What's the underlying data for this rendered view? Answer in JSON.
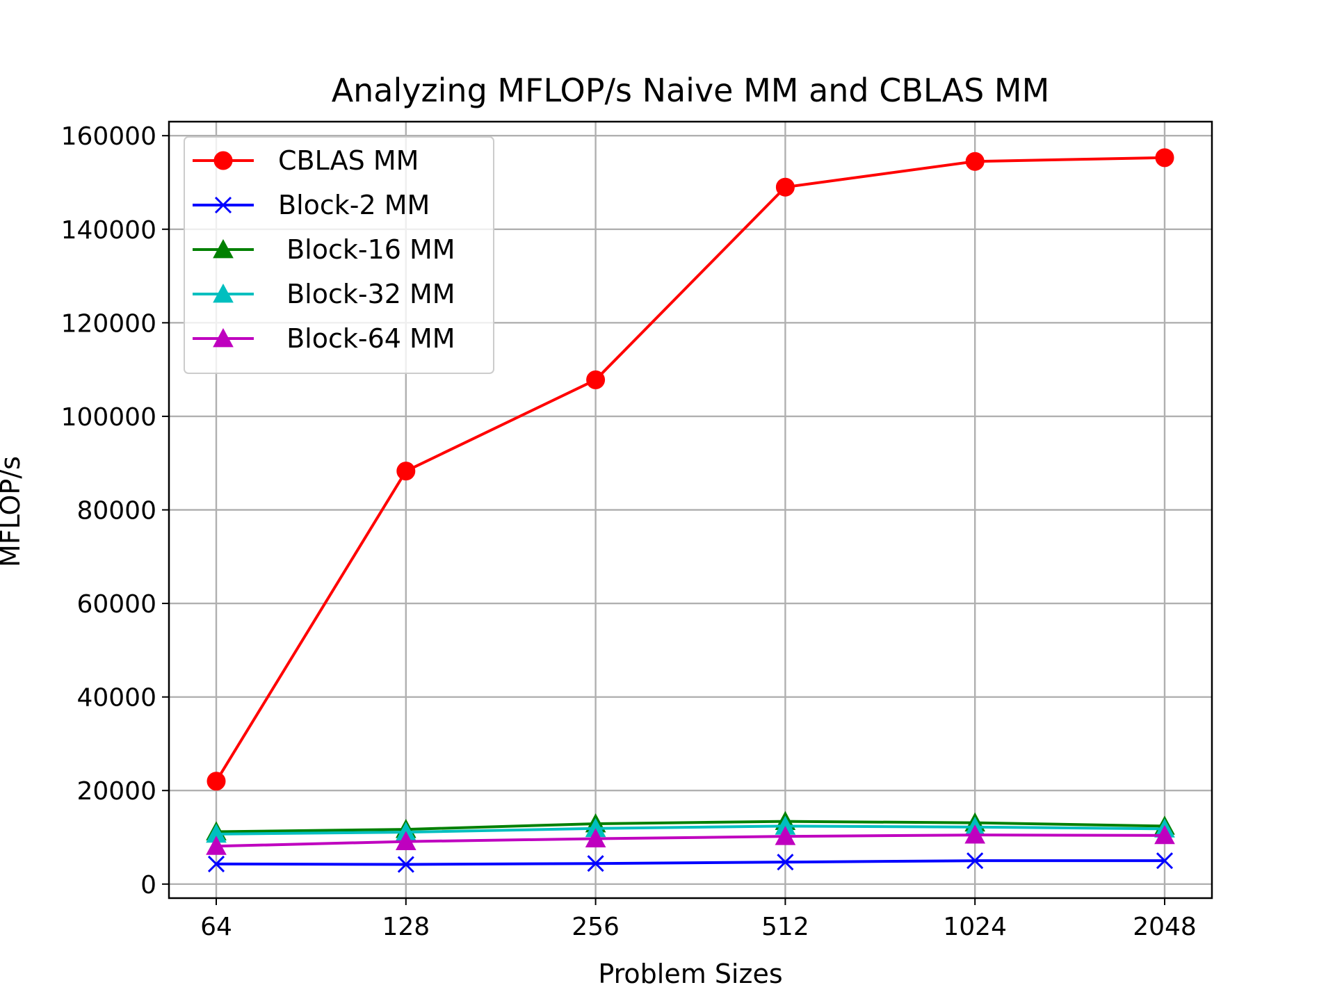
{
  "chart_data": {
    "type": "line",
    "title": "Analyzing MFLOP/s Naive MM and CBLAS MM",
    "xlabel": "Problem Sizes",
    "ylabel": "MFLOP/s",
    "categories": [
      "64",
      "128",
      "256",
      "512",
      "1024",
      "2048"
    ],
    "ylim": [
      -3000,
      163000
    ],
    "yticks": [
      0,
      20000,
      40000,
      60000,
      80000,
      100000,
      120000,
      140000,
      160000
    ],
    "grid": true,
    "legend_position": "upper-left",
    "series": [
      {
        "name": "CBLAS MM",
        "color": "#ff0000",
        "marker": "circle",
        "values": [
          22000,
          88300,
          107800,
          149000,
          154500,
          155300
        ]
      },
      {
        "name": "Block-2 MM",
        "color": "#0000ff",
        "marker": "x",
        "values": [
          4300,
          4200,
          4400,
          4700,
          5000,
          5000
        ]
      },
      {
        "name": " Block-16 MM",
        "color": "#008000",
        "marker": "triangle-up",
        "values": [
          11200,
          11700,
          12900,
          13400,
          13100,
          12400
        ]
      },
      {
        "name": " Block-32 MM",
        "color": "#00bfbf",
        "marker": "triangle-up",
        "values": [
          10700,
          11100,
          11900,
          12400,
          12200,
          11800
        ]
      },
      {
        "name": " Block-64 MM",
        "color": "#bf00bf",
        "marker": "triangle-up",
        "values": [
          8100,
          9100,
          9700,
          10200,
          10500,
          10400
        ]
      }
    ]
  }
}
